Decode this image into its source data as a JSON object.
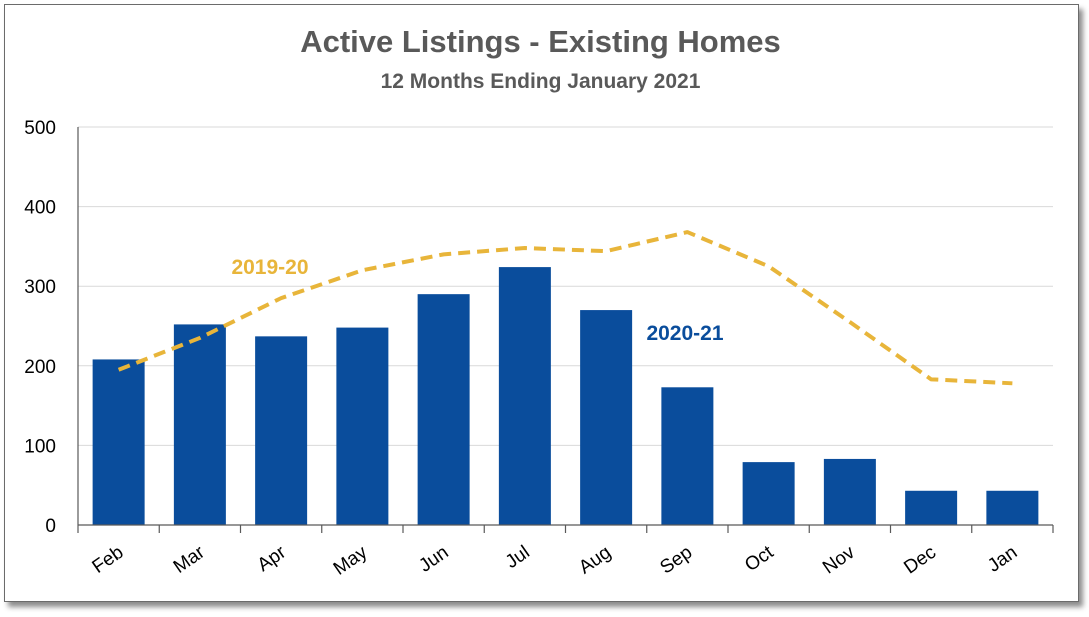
{
  "chart_data": {
    "type": "bar",
    "title": "Active Listings - Existing Homes",
    "subtitle": "12 Months Ending January 2021",
    "categories": [
      "Feb",
      "Mar",
      "Apr",
      "May",
      "Jun",
      "Jul",
      "Aug",
      "Sep",
      "Oct",
      "Nov",
      "Dec",
      "Jan"
    ],
    "ylim": [
      0,
      500
    ],
    "yticks": [
      "0",
      "100",
      "200",
      "300",
      "400",
      "500"
    ],
    "grid": true,
    "series": [
      {
        "name": "2020-21",
        "type": "bar",
        "color": "#0a4d9c",
        "values": [
          208,
          252,
          237,
          248,
          290,
          324,
          270,
          173,
          79,
          83,
          43,
          43
        ]
      },
      {
        "name": "2019-20",
        "type": "line",
        "style": "dashed",
        "color": "#e8b53a",
        "values": [
          195,
          235,
          285,
          320,
          340,
          348,
          344,
          368,
          325,
          255,
          183,
          178
        ]
      }
    ]
  }
}
